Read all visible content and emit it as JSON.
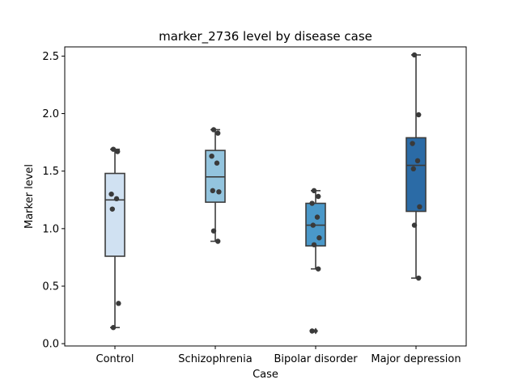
{
  "chart_data": {
    "type": "box",
    "title": "marker_2736 level by disease case",
    "xlabel": "Case",
    "ylabel": "Marker level",
    "ylim": [
      -0.02,
      2.58
    ],
    "yticks": [
      "0.0",
      "0.5",
      "1.0",
      "1.5",
      "2.0",
      "2.5"
    ],
    "grid": false,
    "legend": "none",
    "categories": [
      "Control",
      "Schizophrenia",
      "Bipolar disorder",
      "Major depression"
    ],
    "colors": [
      "#d0e1f2",
      "#93c4de",
      "#4a98c9",
      "#2b6ba6"
    ],
    "boxes": [
      {
        "q1": 0.76,
        "median": 1.25,
        "q3": 1.48,
        "whisker_low": 0.14,
        "whisker_high": 1.69,
        "outliers": [],
        "points": [
          1.69,
          1.67,
          1.3,
          1.26,
          1.17,
          0.35,
          0.14
        ]
      },
      {
        "q1": 1.23,
        "median": 1.45,
        "q3": 1.68,
        "whisker_low": 0.89,
        "whisker_high": 1.86,
        "outliers": [],
        "points": [
          1.86,
          1.83,
          1.63,
          1.57,
          1.33,
          1.32,
          0.98,
          0.89
        ]
      },
      {
        "q1": 0.85,
        "median": 1.03,
        "q3": 1.22,
        "whisker_low": 0.65,
        "whisker_high": 1.33,
        "outliers": [
          0.11
        ],
        "points": [
          1.33,
          1.28,
          1.22,
          1.1,
          1.03,
          0.92,
          0.86,
          0.65,
          0.11
        ]
      },
      {
        "q1": 1.15,
        "median": 1.55,
        "q3": 1.79,
        "whisker_low": 0.57,
        "whisker_high": 2.51,
        "outliers": [],
        "points": [
          2.51,
          1.99,
          1.74,
          1.59,
          1.52,
          1.19,
          1.03,
          0.57
        ]
      }
    ]
  }
}
